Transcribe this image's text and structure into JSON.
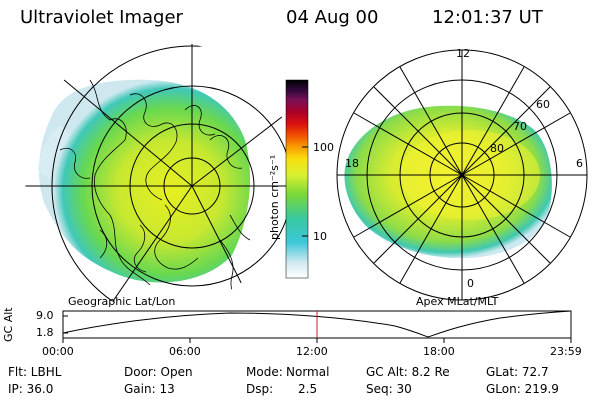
{
  "header": {
    "instrument": "Ultraviolet Imager",
    "date": "04 Aug 00",
    "time": "12:01:37 UT"
  },
  "colorbar": {
    "unit": "photon cm⁻²s⁻¹",
    "ticks": [
      "100",
      "10"
    ]
  },
  "geo_panel": {
    "label": "Geographic Lat/Lon"
  },
  "apex_panel": {
    "label": "Apex MLat/MLT",
    "mlt_labels": [
      "12",
      "18",
      "6",
      "0"
    ],
    "mlat_labels": [
      "60",
      "70",
      "80"
    ]
  },
  "altitude_plot": {
    "ylabel": "GC Alt",
    "yticks": [
      "9.0",
      "1.8"
    ],
    "xticks": [
      "00:00",
      "06:00",
      "12:00",
      "18:00",
      "23:59"
    ]
  },
  "info": {
    "flt": "Flt: LBHL",
    "ip": "IP: 36.0",
    "door": "Door: Open",
    "gain": "Gain: 13",
    "mode_label": "Mode:",
    "mode_value": "Normal",
    "dsp_label": "Dsp:",
    "dsp_value": "2.5",
    "gcalt": "GC Alt: 8.2 Re",
    "seq": "Seq: 30",
    "glat": "GLat: 72.7",
    "glon": "GLon: 219.9"
  }
}
